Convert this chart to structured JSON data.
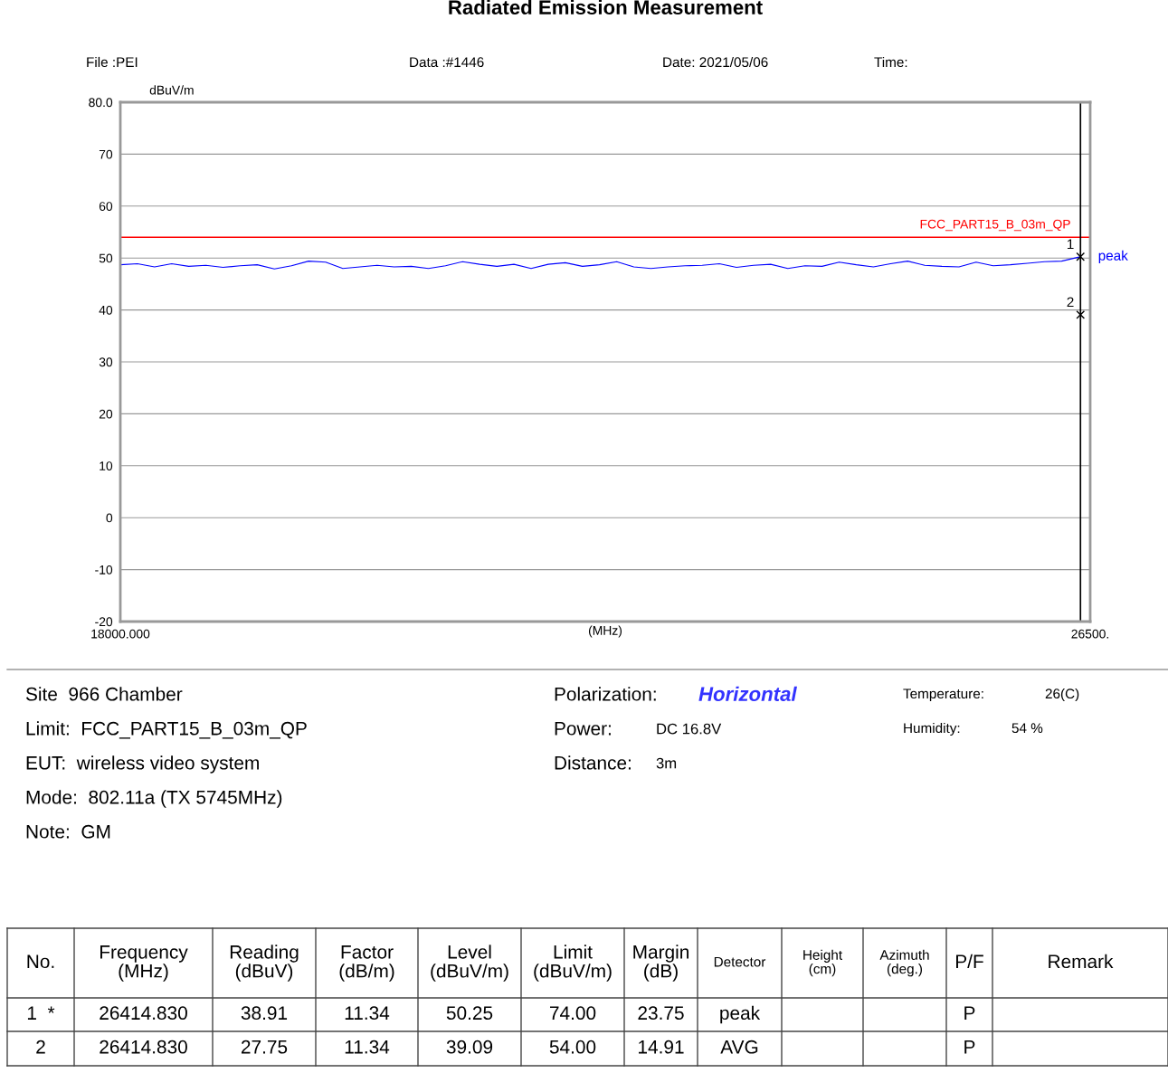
{
  "chart_data": {
    "type": "line",
    "title": "Radiated Emission Measurement",
    "ylabel": "dBuV/m",
    "xlabel": "(MHz)",
    "xlim": [
      18000,
      26500
    ],
    "xticks": [
      {
        "value": 18000,
        "label": "18000.000"
      },
      {
        "value": 26500,
        "label": "26500."
      }
    ],
    "ylim": [
      -20,
      80
    ],
    "yticks": [
      {
        "value": 80,
        "label": "80.0"
      },
      70,
      60,
      50,
      40,
      30,
      20,
      10,
      0,
      -10,
      -20
    ],
    "grid": "y",
    "series": [
      {
        "name": "peak",
        "color": "#0000ff",
        "x": [
          18000,
          18150,
          18300,
          18450,
          18600,
          18750,
          18900,
          19050,
          19200,
          19350,
          19500,
          19650,
          19800,
          19950,
          20100,
          20250,
          20400,
          20550,
          20700,
          20850,
          21000,
          21150,
          21300,
          21450,
          21600,
          21750,
          21900,
          22050,
          22200,
          22350,
          22500,
          22650,
          22800,
          22950,
          23100,
          23250,
          23400,
          23550,
          23700,
          23850,
          24000,
          24150,
          24300,
          24450,
          24600,
          24750,
          24900,
          25050,
          25200,
          25350,
          25500,
          25650,
          25800,
          25950,
          26100,
          26250,
          26414.83
        ],
        "values": [
          48.7,
          48.9,
          48.3,
          48.9,
          48.4,
          48.6,
          48.2,
          48.5,
          48.7,
          47.9,
          48.5,
          49.4,
          49.2,
          48.0,
          48.3,
          48.6,
          48.3,
          48.4,
          48.0,
          48.5,
          49.3,
          48.8,
          48.4,
          48.8,
          48.0,
          48.8,
          49.1,
          48.4,
          48.7,
          49.3,
          48.3,
          48.0,
          48.3,
          48.5,
          48.6,
          48.9,
          48.2,
          48.6,
          48.8,
          48.0,
          48.5,
          48.4,
          49.2,
          48.7,
          48.3,
          48.9,
          49.4,
          48.6,
          48.4,
          48.3,
          49.2,
          48.5,
          48.7,
          49.0,
          49.3,
          49.4,
          50.25
        ]
      }
    ],
    "ref_lines": [
      {
        "axis": "y",
        "value": 54,
        "label": "FCC_PART15_B_03m_QP",
        "color": "#ff0000"
      },
      {
        "axis": "x",
        "value": 26414.83,
        "label": null,
        "color": "#000000"
      }
    ],
    "annotations": [
      {
        "text": "1",
        "x": 26414.83,
        "y": 50.25
      },
      {
        "text": "2",
        "x": 26414.83,
        "y": 39.09
      },
      "File :PEI",
      "Data :#1446",
      "Date: 2021/05/06",
      "Time:",
      "Site  966 Chamber",
      "Limit:  FCC_PART15_B_03m_QP",
      "EUT:  wireless video system",
      "Mode:  802.11a (TX 5745MHz)",
      "Note:  GM",
      "Polarization:",
      "Horizontal",
      "Power:",
      "DC 16.8V",
      "Distance:",
      "3m",
      "Temperature:",
      "26(C)",
      "Humidity:",
      "54 %",
      "No.",
      "Frequency\n(MHz)",
      "Reading\n(dBuV)",
      "Factor\n(dB/m)",
      "Level\n(dBuV/m)",
      "Limit\n(dBuV/m)",
      "Margin\n(dB)",
      "Detector",
      "Height\n(cm)",
      "Azimuth\n(deg.)",
      "P/F",
      "Remark",
      "1  *",
      "26414.830",
      "38.91",
      "11.34",
      "50.25",
      "74.00",
      "23.75",
      "peak",
      null,
      null,
      "P",
      null,
      "2",
      "26414.830",
      "27.75",
      "11.34",
      "39.09",
      "54.00",
      "14.91",
      "AVG",
      null,
      null,
      "P",
      null
    ]
  }
}
